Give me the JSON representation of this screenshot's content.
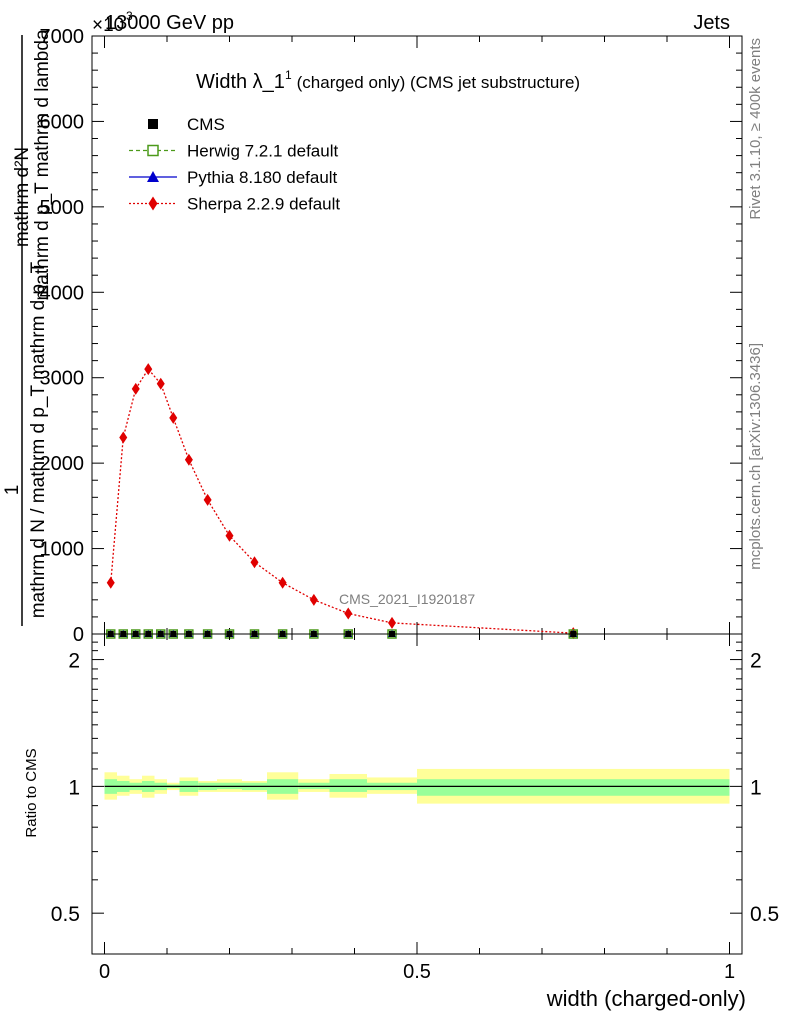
{
  "header": {
    "energy_label": "13000 GeV pp",
    "process_label": "Jets",
    "exponent_label": "×10",
    "exponent_value": "3"
  },
  "side_labels": {
    "rivet": "Rivet 3.1.10, ≥ 400k events",
    "mcplots": "mcplots.cern.ch [arXiv:1306.3436]"
  },
  "watermark": "CMS_2021_I1920187",
  "chart_data": [
    {
      "type": "line",
      "title_main": "Width λ_1",
      "title_sup": "1",
      "title_rest": "(charged only) (CMS jet substructure)",
      "ylabel_numerator": "1",
      "ylabel_denominator": "mathrm d N / mathrm d p_T mathrm d p_T",
      "ylabel_upper_a": "mathrm d²N",
      "ylabel_upper_b": "mathrm d p_T mathrm d lambda",
      "ylim": [
        0,
        7000
      ],
      "y_ticks": [
        0,
        1000,
        2000,
        3000,
        4000,
        5000,
        6000,
        7000
      ],
      "y_tick_labels": [
        "0",
        "1000",
        "2000",
        "3000",
        "4000",
        "5000",
        "6000",
        "7000"
      ],
      "xlim": [
        -0.02,
        1.02
      ],
      "grid": false,
      "legend_position": "top-left",
      "legend": [
        {
          "name": "CMS",
          "color": "#000000",
          "marker": "square"
        },
        {
          "name": "Herwig 7.2.1 default",
          "color": "#4c9a1a",
          "marker": "open-square"
        },
        {
          "name": "Pythia 8.180 default",
          "color": "#0000cc",
          "marker": "triangle"
        },
        {
          "name": "Sherpa 2.2.9 default",
          "color": "#e00000",
          "marker": "diamond"
        }
      ],
      "series": [
        {
          "name": "Sherpa 2.2.9 default",
          "x": [
            0.01,
            0.03,
            0.05,
            0.07,
            0.09,
            0.11,
            0.135,
            0.165,
            0.2,
            0.24,
            0.285,
            0.335,
            0.39,
            0.46,
            0.75
          ],
          "y": [
            600,
            2300,
            2870,
            3100,
            2930,
            2530,
            2040,
            1570,
            1150,
            840,
            600,
            400,
            240,
            130,
            10
          ]
        },
        {
          "name": "CMS",
          "x": [
            0.01,
            0.03,
            0.05,
            0.07,
            0.09,
            0.11,
            0.135,
            0.165,
            0.2,
            0.24,
            0.285,
            0.335,
            0.39,
            0.46,
            0.75
          ],
          "y": [
            0,
            0,
            0,
            0,
            0,
            0,
            0,
            0,
            0,
            0,
            0,
            0,
            0,
            0,
            0
          ]
        }
      ]
    },
    {
      "type": "area",
      "ylabel": "Ratio to CMS",
      "xlabel": "width (charged-only)",
      "ylim": [
        0.4,
        2.3
      ],
      "y_scale": "log",
      "y_ticks": [
        0.5,
        1,
        2
      ],
      "y_tick_labels": [
        "0.5",
        "1",
        "2"
      ],
      "xlim": [
        -0.02,
        1.02
      ],
      "x_ticks": [
        0,
        0.5,
        1
      ],
      "x_tick_labels": [
        "0",
        "0.5",
        "1"
      ],
      "reference": 1,
      "band_colors": {
        "outer": "#ffff99",
        "inner": "#99ff99"
      },
      "bins": [
        0,
        0.02,
        0.04,
        0.06,
        0.08,
        0.1,
        0.12,
        0.15,
        0.18,
        0.22,
        0.26,
        0.31,
        0.36,
        0.42,
        0.5,
        1.0
      ],
      "outer_lo": [
        0.93,
        0.95,
        0.96,
        0.94,
        0.96,
        0.98,
        0.95,
        0.97,
        0.97,
        0.97,
        0.93,
        0.97,
        0.94,
        0.96,
        0.91
      ],
      "outer_hi": [
        1.08,
        1.06,
        1.04,
        1.06,
        1.04,
        1.02,
        1.05,
        1.03,
        1.04,
        1.03,
        1.08,
        1.04,
        1.07,
        1.05,
        1.1
      ],
      "inner_lo": [
        0.96,
        0.97,
        0.98,
        0.97,
        0.98,
        0.99,
        0.97,
        0.98,
        0.985,
        0.98,
        0.96,
        0.985,
        0.97,
        0.98,
        0.95
      ],
      "inner_hi": [
        1.04,
        1.03,
        1.02,
        1.03,
        1.02,
        1.01,
        1.03,
        1.02,
        1.02,
        1.02,
        1.04,
        1.02,
        1.04,
        1.02,
        1.04
      ]
    }
  ]
}
